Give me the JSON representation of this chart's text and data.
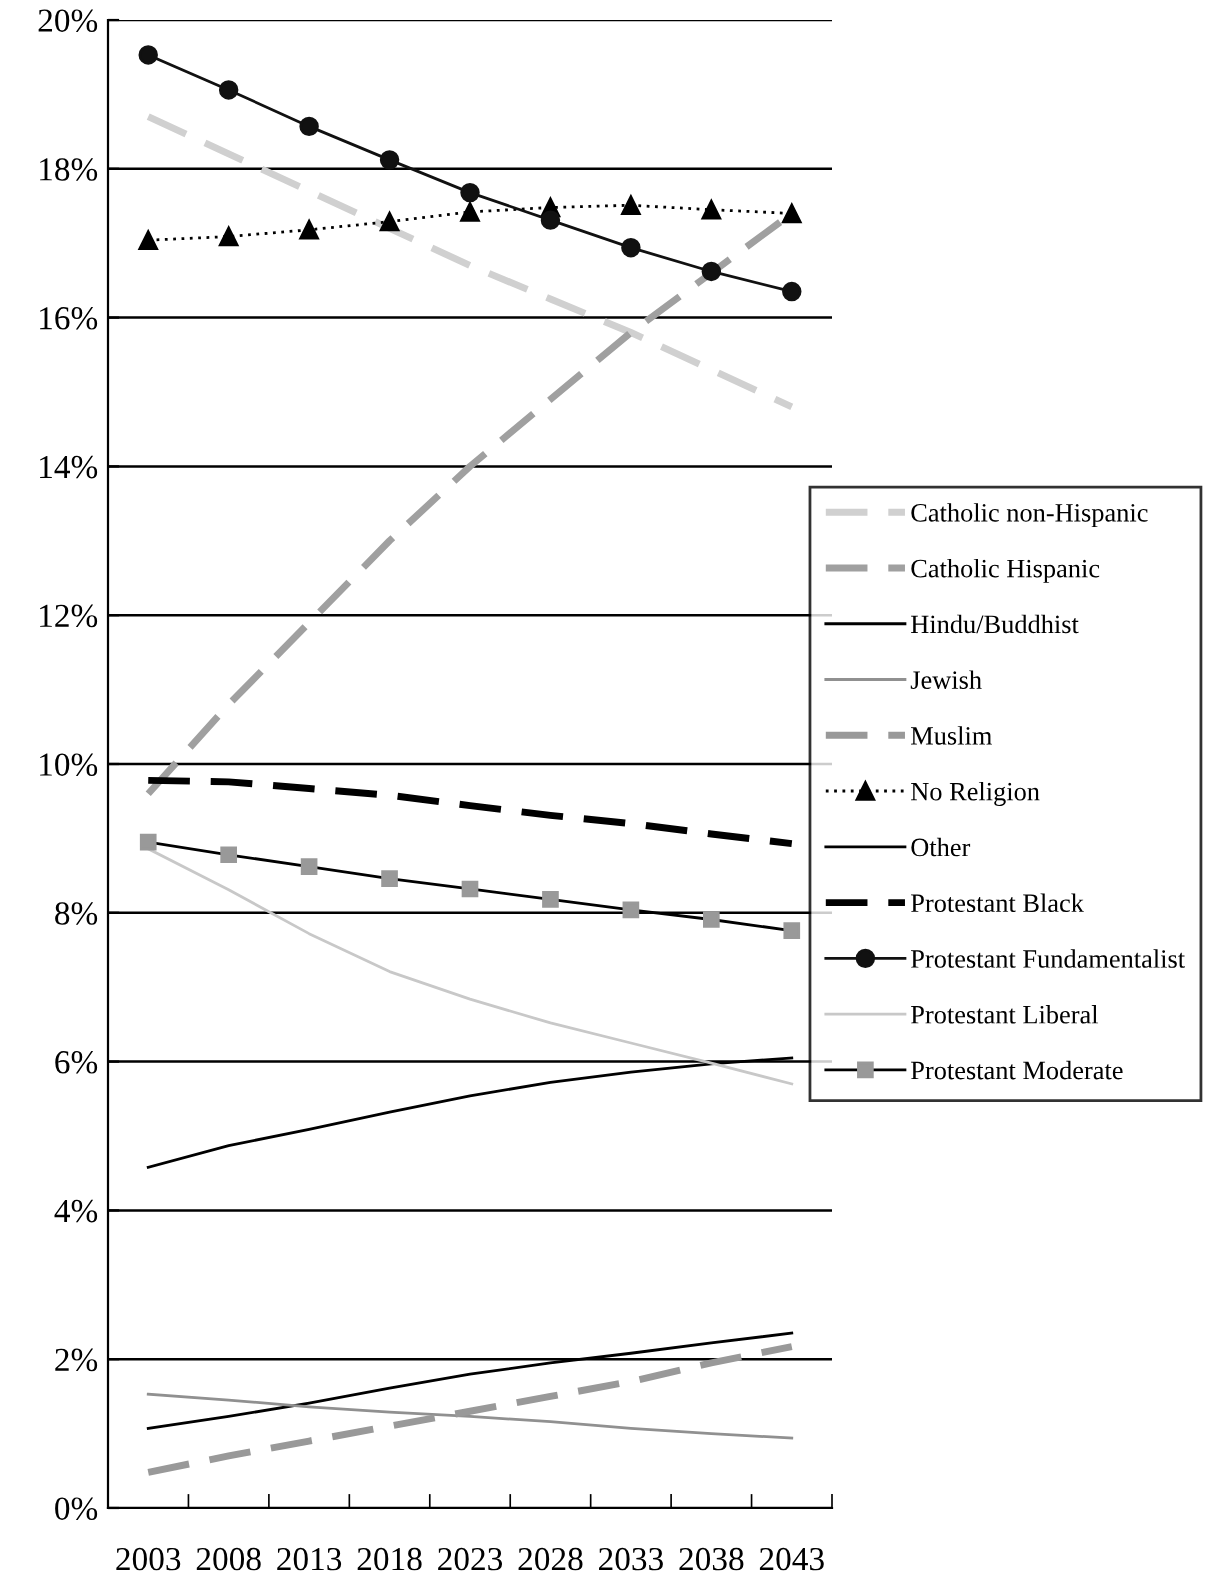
{
  "chart_data": {
    "type": "line",
    "categories": [
      "2003",
      "2008",
      "2013",
      "2018",
      "2023",
      "2028",
      "2033",
      "2038",
      "2043"
    ],
    "ylim": [
      0,
      20
    ],
    "yticks": [
      {
        "value": 0,
        "label": "0%"
      },
      {
        "value": 2,
        "label": "2%"
      },
      {
        "value": 4,
        "label": "4%"
      },
      {
        "value": 6,
        "label": "6%"
      },
      {
        "value": 8,
        "label": "8%"
      },
      {
        "value": 10,
        "label": "10%"
      },
      {
        "value": 12,
        "label": "12%"
      },
      {
        "value": 14,
        "label": "14%"
      },
      {
        "value": 16,
        "label": "16%"
      },
      {
        "value": 18,
        "label": "18%"
      },
      {
        "value": 20,
        "label": "20%"
      }
    ],
    "grid": "y",
    "legend": "right",
    "series": [
      {
        "name": "Catholic non-Hispanic",
        "color": "#d0d0d0",
        "line_style": "dashed",
        "marker": "none",
        "values": [
          18.7,
          18.2,
          17.7,
          17.2,
          16.7,
          16.25,
          15.8,
          15.3,
          14.8
        ]
      },
      {
        "name": "Catholic Hispanic",
        "color": "#a0a0a0",
        "line_style": "dashed",
        "marker": "none",
        "values": [
          9.6,
          10.8,
          11.9,
          13.0,
          14.0,
          14.9,
          15.8,
          16.6,
          17.4
        ]
      },
      {
        "name": "Hindu/Buddhist",
        "color": "#000000",
        "line_style": "solid",
        "marker": "none",
        "values": [
          1.07,
          1.23,
          1.41,
          1.61,
          1.8,
          1.95,
          2.08,
          2.22,
          2.35
        ]
      },
      {
        "name": "Jewish",
        "color": "#909090",
        "line_style": "solid",
        "marker": "none",
        "values": [
          1.53,
          1.45,
          1.36,
          1.29,
          1.23,
          1.16,
          1.07,
          1.0,
          0.94
        ]
      },
      {
        "name": "Muslim",
        "color": "#999999",
        "line_style": "dashed",
        "marker": "none",
        "values": [
          0.48,
          0.7,
          0.9,
          1.1,
          1.3,
          1.5,
          1.7,
          1.95,
          2.17
        ]
      },
      {
        "name": "No Religion",
        "color": "#000000",
        "line_style": "dotted",
        "marker": "triangle",
        "values": [
          17.04,
          17.09,
          17.18,
          17.29,
          17.42,
          17.48,
          17.51,
          17.45,
          17.4
        ]
      },
      {
        "name": "Other",
        "color": "#000000",
        "line_style": "solid",
        "marker": "none",
        "values": [
          4.58,
          4.87,
          5.09,
          5.32,
          5.54,
          5.72,
          5.86,
          5.97,
          6.05
        ]
      },
      {
        "name": "Protestant Black",
        "color": "#000000",
        "line_style": "dashed",
        "marker": "none",
        "values": [
          9.78,
          9.76,
          9.67,
          9.58,
          9.44,
          9.31,
          9.2,
          9.06,
          8.93
        ]
      },
      {
        "name": "Protestant Fundamentalist",
        "color": "#111111",
        "line_style": "solid",
        "marker": "circle",
        "values": [
          19.53,
          19.06,
          18.57,
          18.12,
          17.68,
          17.31,
          16.94,
          16.62,
          16.35
        ]
      },
      {
        "name": "Protestant Liberal",
        "color": "#c8c8c8",
        "line_style": "solid",
        "marker": "none",
        "values": [
          8.86,
          8.31,
          7.72,
          7.21,
          6.84,
          6.52,
          6.25,
          5.98,
          5.7
        ]
      },
      {
        "name": "Protestant Moderate",
        "color": "#999999",
        "line_style": "solid",
        "marker": "square",
        "values": [
          8.95,
          8.78,
          8.62,
          8.46,
          8.32,
          8.18,
          8.04,
          7.91,
          7.76
        ]
      }
    ]
  }
}
